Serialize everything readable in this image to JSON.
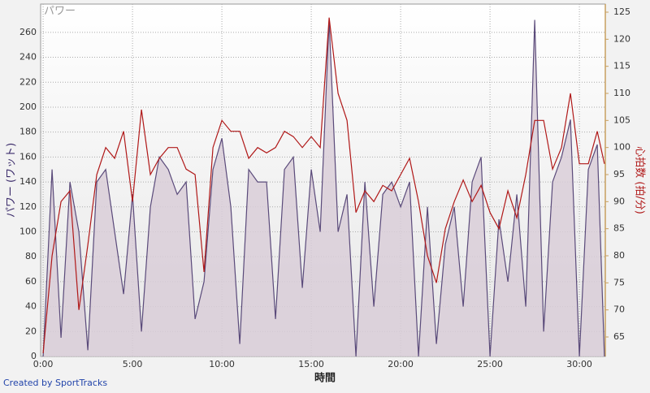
{
  "chart_data": {
    "type": "area",
    "title": "パワー",
    "xlabel": "時間",
    "ylabel": "パワー (ワット)",
    "y2label": "心拍数 (拍/分)",
    "footer": "Created by SportTracks",
    "x": [
      0,
      0.5,
      1,
      1.5,
      2,
      2.5,
      3,
      3.5,
      4,
      4.5,
      5,
      5.5,
      6,
      6.5,
      7,
      7.5,
      8,
      8.5,
      9,
      9.5,
      10,
      10.5,
      11,
      11.5,
      12,
      12.5,
      13,
      13.5,
      14,
      14.5,
      15,
      15.5,
      16,
      16.5,
      17,
      17.5,
      18,
      18.5,
      19,
      19.5,
      20,
      20.5,
      21,
      21.5,
      22,
      22.5,
      23,
      23.5,
      24,
      24.5,
      25,
      25.5,
      26,
      26.5,
      27,
      27.5,
      28,
      28.5,
      29,
      29.5,
      30,
      30.5,
      31,
      31.4
    ],
    "series": [
      {
        "color": "#5a4a7a",
        "fill": "#d9ced8",
        "axis": "y",
        "values": [
          0,
          150,
          15,
          140,
          100,
          5,
          140,
          150,
          100,
          50,
          130,
          20,
          120,
          160,
          150,
          130,
          140,
          30,
          60,
          150,
          175,
          120,
          10,
          150,
          140,
          140,
          30,
          150,
          160,
          55,
          150,
          100,
          270,
          100,
          130,
          0,
          140,
          40,
          130,
          140,
          120,
          140,
          0,
          120,
          10,
          90,
          120,
          40,
          140,
          160,
          0,
          110,
          60,
          130,
          40,
          270,
          20,
          140,
          160,
          190,
          0,
          150,
          170,
          0
        ]
      },
      {
        "color": "#b01818",
        "fill": null,
        "axis": "y2",
        "values": [
          62,
          80,
          90,
          92,
          70,
          82,
          95,
          100,
          98,
          103,
          90,
          107,
          95,
          98,
          100,
          100,
          96,
          95,
          77,
          100,
          105,
          103,
          103,
          98,
          100,
          99,
          100,
          103,
          102,
          100,
          102,
          100,
          124,
          110,
          105,
          88,
          92,
          90,
          93,
          92,
          95,
          98,
          90,
          80,
          75,
          85,
          90,
          94,
          90,
          93,
          88,
          85,
          92,
          87,
          95,
          105,
          105,
          96,
          100,
          110,
          97,
          97,
          103,
          97
        ]
      }
    ],
    "xlim": [
      -0.14,
      31.45
    ],
    "xticks": [
      {
        "value": 0,
        "label": "0:00"
      },
      {
        "value": 5,
        "label": "5:00"
      },
      {
        "value": 10,
        "label": "10:00"
      },
      {
        "value": 15,
        "label": "15:00"
      },
      {
        "value": 20,
        "label": "20:00"
      },
      {
        "value": 25,
        "label": "25:00"
      },
      {
        "value": 30,
        "label": "30:00"
      }
    ],
    "ylim": [
      0,
      282.7
    ],
    "yticks": [
      0,
      20,
      40,
      60,
      80,
      100,
      120,
      140,
      160,
      180,
      200,
      220,
      240,
      260
    ],
    "y2lim": [
      61.4,
      126.5
    ],
    "y2ticks": [
      65,
      70,
      75,
      80,
      85,
      90,
      95,
      100,
      105,
      110,
      115,
      120,
      125
    ],
    "grid": true
  }
}
